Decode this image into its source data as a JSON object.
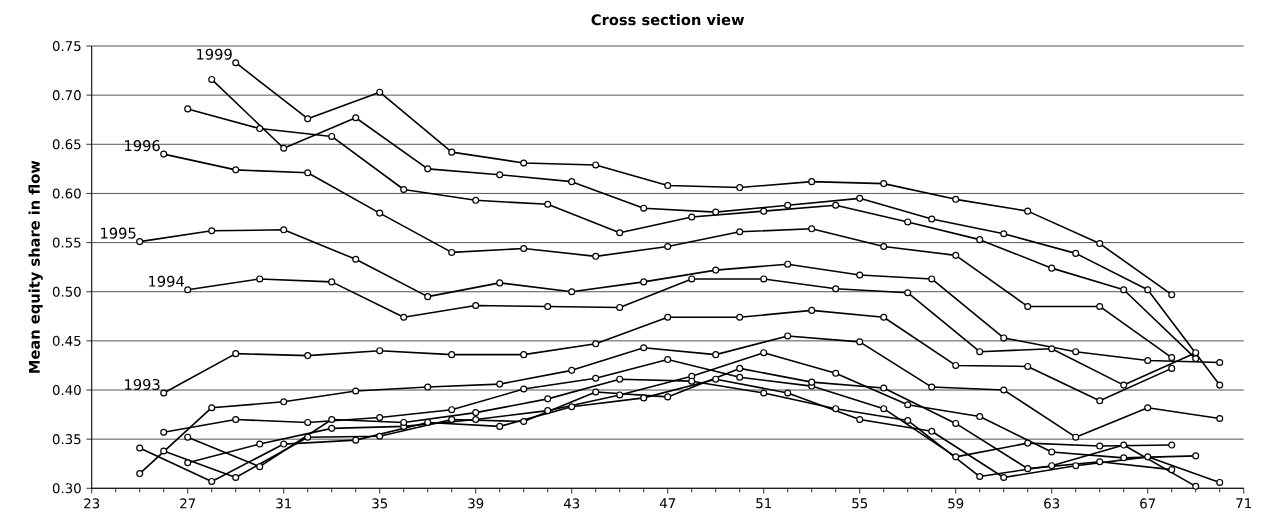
{
  "chart_data": {
    "type": "line",
    "title": "Cross section view",
    "ylabel": "Mean equity share in flow",
    "xlim": [
      23,
      71
    ],
    "xticks": [
      23,
      27,
      31,
      35,
      39,
      43,
      47,
      51,
      55,
      59,
      63,
      67,
      71
    ],
    "ylim": [
      0.3,
      0.75
    ],
    "yticks": [
      {
        "value": 0.3,
        "label": "0.30"
      },
      {
        "value": 0.35,
        "label": "0.35"
      },
      {
        "value": 0.4,
        "label": "0.40"
      },
      {
        "value": 0.45,
        "label": "0.45"
      },
      {
        "value": 0.5,
        "label": "0.50"
      },
      {
        "value": 0.55,
        "label": "0.55"
      },
      {
        "value": 0.6,
        "label": "0.60"
      },
      {
        "value": 0.65,
        "label": "0.65"
      },
      {
        "value": 0.7,
        "label": "0.70"
      },
      {
        "value": 0.75,
        "label": "0.75"
      }
    ],
    "grid": "y",
    "marker": "circle",
    "line_style": "solid",
    "series": [
      {
        "name": "1999",
        "color": "#000000",
        "x": [
          29,
          32,
          35,
          38,
          41,
          44,
          47,
          50,
          53,
          56,
          59,
          62,
          65,
          68
        ],
        "values": [
          0.733,
          0.676,
          0.703,
          0.642,
          0.631,
          0.629,
          0.608,
          0.606,
          0.612,
          0.61,
          0.594,
          0.582,
          0.549,
          0.497
        ]
      },
      {
        "color": "#000000",
        "x": [
          28,
          31,
          34,
          37,
          40,
          43,
          46,
          49,
          52,
          55,
          58,
          61,
          64,
          67,
          70
        ],
        "values": [
          0.716,
          0.646,
          0.677,
          0.625,
          0.619,
          0.612,
          0.585,
          0.581,
          0.588,
          0.595,
          0.574,
          0.559,
          0.539,
          0.502,
          0.405
        ]
      },
      {
        "color": "#000000",
        "x": [
          27,
          30,
          33,
          36,
          39,
          42,
          45,
          48,
          51,
          54,
          57,
          60,
          63,
          66,
          69
        ],
        "values": [
          0.686,
          0.666,
          0.658,
          0.604,
          0.593,
          0.589,
          0.56,
          0.576,
          0.582,
          0.588,
          0.571,
          0.553,
          0.524,
          0.502,
          0.432
        ]
      },
      {
        "name": "1996",
        "color": "#000000",
        "x": [
          26,
          29,
          32,
          35,
          38,
          41,
          44,
          47,
          50,
          53,
          56,
          59,
          62,
          65,
          68
        ],
        "values": [
          0.64,
          0.624,
          0.621,
          0.58,
          0.54,
          0.544,
          0.536,
          0.546,
          0.561,
          0.564,
          0.546,
          0.537,
          0.485,
          0.485,
          0.433
        ]
      },
      {
        "name": "1995",
        "color": "#000000",
        "x": [
          25,
          28,
          31,
          34,
          37,
          40,
          43,
          46,
          49,
          52,
          55,
          58,
          61,
          64,
          67,
          70
        ],
        "values": [
          0.551,
          0.562,
          0.563,
          0.533,
          0.495,
          0.509,
          0.5,
          0.51,
          0.522,
          0.528,
          0.517,
          0.513,
          0.453,
          0.439,
          0.43,
          0.428
        ]
      },
      {
        "name": "1994",
        "color": "#000000",
        "x": [
          27,
          30,
          33,
          36,
          39,
          42,
          45,
          48,
          51,
          54,
          57,
          60,
          63,
          66,
          69
        ],
        "values": [
          0.502,
          0.513,
          0.51,
          0.474,
          0.486,
          0.485,
          0.484,
          0.513,
          0.513,
          0.503,
          0.499,
          0.439,
          0.442,
          0.405,
          0.438
        ]
      },
      {
        "name": "1993",
        "color": "#000000",
        "x": [
          26,
          29,
          32,
          35,
          38,
          41,
          44,
          47,
          50,
          53,
          56,
          59,
          62,
          65,
          68
        ],
        "values": [
          0.397,
          0.437,
          0.435,
          0.44,
          0.436,
          0.436,
          0.447,
          0.474,
          0.474,
          0.481,
          0.474,
          0.425,
          0.424,
          0.389,
          0.422
        ]
      },
      {
        "color": "#000000",
        "x": [
          25,
          28,
          31,
          34,
          37,
          40,
          43,
          46,
          49,
          52,
          55,
          58,
          61,
          64,
          67,
          70
        ],
        "values": [
          0.315,
          0.382,
          0.388,
          0.399,
          0.403,
          0.406,
          0.42,
          0.443,
          0.436,
          0.455,
          0.449,
          0.403,
          0.4,
          0.352,
          0.382,
          0.371
        ]
      },
      {
        "color": "#000000",
        "x": [
          26,
          29,
          32,
          35,
          38,
          41,
          44,
          47,
          50,
          53,
          56,
          59,
          62,
          65,
          68
        ],
        "values": [
          0.357,
          0.37,
          0.367,
          0.372,
          0.38,
          0.401,
          0.412,
          0.431,
          0.413,
          0.404,
          0.381,
          0.332,
          0.346,
          0.343,
          0.344
        ]
      },
      {
        "color": "#000000",
        "x": [
          27,
          30,
          33,
          36,
          39,
          42,
          45,
          48,
          51,
          54,
          57,
          60,
          63,
          66,
          69
        ],
        "values": [
          0.326,
          0.345,
          0.361,
          0.363,
          0.37,
          0.379,
          0.395,
          0.414,
          0.438,
          0.417,
          0.385,
          0.373,
          0.337,
          0.331,
          0.333
        ]
      },
      {
        "color": "#000000",
        "x": [
          27,
          30,
          33,
          36,
          39,
          42,
          45,
          48,
          51,
          54,
          57,
          60,
          63,
          66,
          69
        ],
        "values": [
          0.352,
          0.322,
          0.37,
          0.367,
          0.377,
          0.391,
          0.411,
          0.409,
          0.397,
          0.381,
          0.369,
          0.312,
          0.323,
          0.344,
          0.302
        ]
      },
      {
        "color": "#000000",
        "x": [
          26,
          29,
          32,
          35,
          38,
          41,
          44,
          47,
          50,
          53,
          56,
          59,
          62,
          65,
          68
        ],
        "values": [
          0.338,
          0.311,
          0.352,
          0.353,
          0.37,
          0.368,
          0.398,
          0.393,
          0.422,
          0.408,
          0.402,
          0.366,
          0.32,
          0.327,
          0.319
        ]
      },
      {
        "color": "#000000",
        "x": [
          25,
          28,
          31,
          34,
          37,
          40,
          43,
          46,
          49,
          52,
          55,
          58,
          61,
          64,
          67,
          70
        ],
        "values": [
          0.341,
          0.307,
          0.345,
          0.349,
          0.367,
          0.363,
          0.383,
          0.392,
          0.411,
          0.397,
          0.37,
          0.358,
          0.311,
          0.323,
          0.332,
          0.306
        ]
      }
    ]
  }
}
